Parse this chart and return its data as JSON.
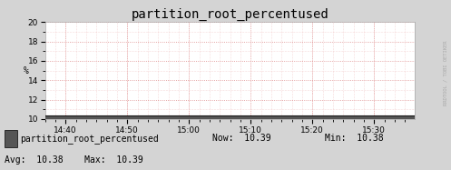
{
  "title": "partition_root_percentused",
  "ylabel": "%",
  "ylim": [
    10,
    20
  ],
  "yticks": [
    10,
    12,
    14,
    16,
    18,
    20
  ],
  "xtick_labels": [
    "14:40",
    "14:50",
    "15:00",
    "15:10",
    "15:20",
    "15:30"
  ],
  "xtick_positions": [
    0.055,
    0.222,
    0.389,
    0.556,
    0.722,
    0.889
  ],
  "line_value": 10.38,
  "line_color": "#1a1a1a",
  "line_area_color": "#555555",
  "bg_color": "#d4d4d4",
  "plot_bg_color": "#ffffff",
  "grid_color_major": "#dd8888",
  "grid_color_minor": "#eebbbb",
  "title_fontsize": 10,
  "legend_label": "partition_root_percentused",
  "legend_square_color": "#555555",
  "now_val": "10.39",
  "min_val": "10.38",
  "avg_val": "10.38",
  "max_val": "10.39",
  "arrow_color": "#cc0000",
  "watermark": "RRDTOOL / TOBI OETIKER",
  "font_family": "DejaVu Sans Mono"
}
